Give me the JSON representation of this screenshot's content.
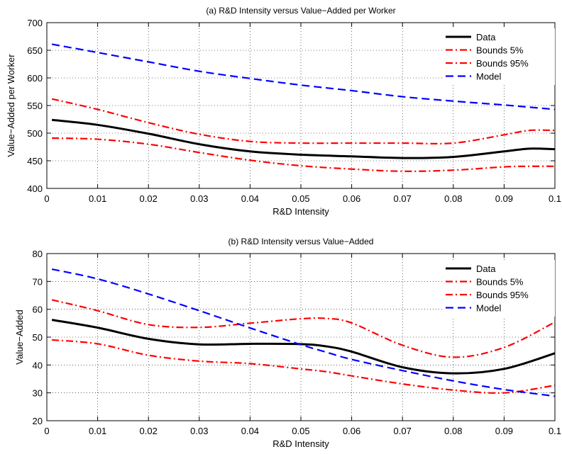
{
  "chart_data": [
    {
      "type": "line",
      "title": "(a) R&D Intensity versus Value−Added per Worker",
      "xlabel": "R&D Intensity",
      "ylabel": "Value−Added per Worker",
      "xlim": [
        0,
        0.1
      ],
      "ylim": [
        400,
        700
      ],
      "x_ticks": [
        "0",
        "0.01",
        "0.02",
        "0.03",
        "0.04",
        "0.05",
        "0.06",
        "0.07",
        "0.08",
        "0.09",
        "0.1"
      ],
      "y_ticks": [
        "400",
        "450",
        "500",
        "550",
        "600",
        "650",
        "700"
      ],
      "grid": true,
      "legend_position": "top-right",
      "x": [
        0.001,
        0.01,
        0.02,
        0.03,
        0.04,
        0.05,
        0.06,
        0.07,
        0.08,
        0.09,
        0.095,
        0.1
      ],
      "series": [
        {
          "name": "Data",
          "color": "#000000",
          "style": "solid",
          "values": [
            524,
            515,
            499,
            480,
            467,
            461,
            458,
            455,
            457,
            467,
            472,
            471
          ]
        },
        {
          "name": "Bounds 5%",
          "color": "#ff0000",
          "style": "dashdot",
          "values": [
            491,
            489,
            480,
            465,
            451,
            441,
            435,
            431,
            433,
            439,
            440,
            440
          ]
        },
        {
          "name": "Bounds 95%",
          "color": "#ff0000",
          "style": "dashdot",
          "values": [
            562,
            543,
            519,
            498,
            485,
            482,
            482,
            482,
            482,
            497,
            505,
            505
          ]
        },
        {
          "name": "Model",
          "color": "#0000ff",
          "style": "dashed",
          "values": [
            661,
            646,
            629,
            612,
            599,
            587,
            577,
            566,
            558,
            551,
            547,
            543
          ]
        }
      ]
    },
    {
      "type": "line",
      "title": "(b) R&D Intensity versus Value−Added",
      "xlabel": "R&D Intensity",
      "ylabel": "Value−Added",
      "xlim": [
        0,
        0.1
      ],
      "ylim": [
        20,
        80
      ],
      "x_ticks": [
        "0",
        "0.01",
        "0.02",
        "0.03",
        "0.04",
        "0.05",
        "0.06",
        "0.07",
        "0.08",
        "0.09",
        "0.1"
      ],
      "y_ticks": [
        "20",
        "30",
        "40",
        "50",
        "60",
        "70",
        "80"
      ],
      "grid": true,
      "legend_position": "top-right",
      "x": [
        0.001,
        0.01,
        0.02,
        0.03,
        0.04,
        0.05,
        0.055,
        0.06,
        0.07,
        0.08,
        0.09,
        0.1
      ],
      "series": [
        {
          "name": "Data",
          "color": "#000000",
          "style": "solid",
          "values": [
            56.2,
            53.4,
            49.4,
            47.4,
            47.6,
            47.5,
            46.7,
            44.8,
            39.2,
            37,
            38.6,
            44.2
          ]
        },
        {
          "name": "Bounds 5%",
          "color": "#ff0000",
          "style": "dashdot",
          "values": [
            49,
            47.6,
            43.5,
            41.4,
            40.5,
            38.6,
            37.6,
            36.1,
            33.2,
            31,
            30,
            32.7
          ]
        },
        {
          "name": "Bounds 95%",
          "color": "#ff0000",
          "style": "dashdot",
          "values": [
            63.4,
            59.5,
            54.5,
            53.5,
            55,
            56.6,
            56.7,
            55.1,
            47.1,
            42.8,
            46.3,
            55.4
          ]
        },
        {
          "name": "Model",
          "color": "#0000ff",
          "style": "dashed",
          "values": [
            74.4,
            70.9,
            65.5,
            59.5,
            53.3,
            47.3,
            44.6,
            42,
            38,
            34.3,
            31.2,
            28.8
          ]
        }
      ]
    }
  ]
}
